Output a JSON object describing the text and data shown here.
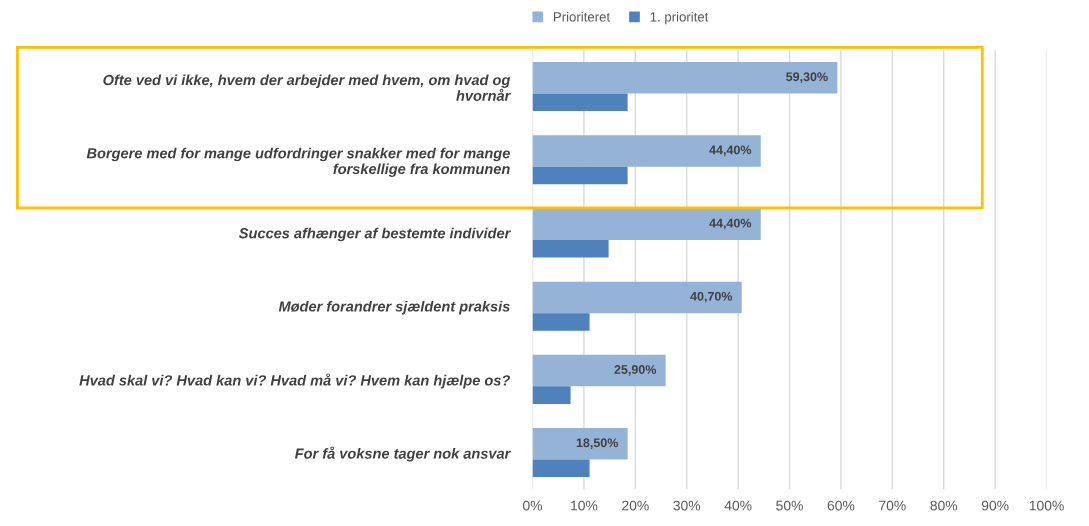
{
  "chart_data": {
    "type": "bar",
    "orientation": "horizontal",
    "categories": [
      "Ofte ved vi ikke, hvem der arbejder med hvem, om hvad og\nhvornår",
      "Borgere med for mange udfordringer snakker med for mange\nforskellige fra kommunen",
      "Succes afhænger af bestemte individer",
      "Møder forandrer sjældent praksis",
      "Hvad skal vi? Hvad kan vi? Hvad må vi? Hvem kan hjælpe os?",
      "For få voksne tager nok ansvar"
    ],
    "series": [
      {
        "name": "Prioriteret",
        "color": "#95b3d7",
        "values": [
          59.3,
          44.4,
          44.4,
          40.7,
          25.9,
          18.5
        ],
        "value_labels": [
          "59,30%",
          "44,40%",
          "44,40%",
          "40,70%",
          "25,90%",
          "18,50%"
        ]
      },
      {
        "name": "1. prioritet",
        "color": "#4f81bd",
        "values": [
          18.5,
          18.5,
          14.8,
          11.1,
          7.4,
          11.1
        ]
      }
    ],
    "xlim": [
      0,
      100
    ],
    "xticks": [
      {
        "value": 0,
        "label": "0%"
      },
      {
        "value": 10,
        "label": "10%"
      },
      {
        "value": 20,
        "label": "20%"
      },
      {
        "value": 30,
        "label": "30%"
      },
      {
        "value": 40,
        "label": "40%"
      },
      {
        "value": 50,
        "label": "50%"
      },
      {
        "value": 60,
        "label": "60%"
      },
      {
        "value": 70,
        "label": "70%"
      },
      {
        "value": 80,
        "label": "80%"
      },
      {
        "value": 90,
        "label": "90%"
      },
      {
        "value": 100,
        "label": "100%"
      }
    ],
    "grid": "x",
    "legend": "top"
  }
}
